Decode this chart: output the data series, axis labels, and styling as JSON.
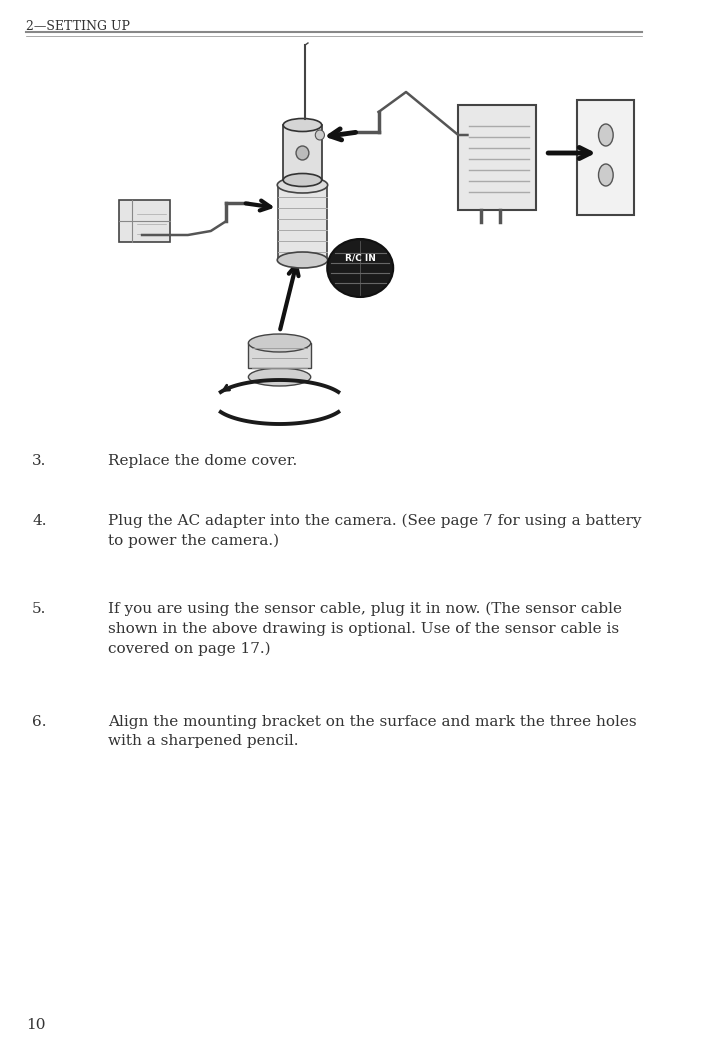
{
  "title": "2—Setting up",
  "page_number": "10",
  "background_color": "#ffffff",
  "text_color": "#333333",
  "header_line_color": "#888888",
  "items": [
    {
      "number": "3.",
      "text": "Replace the dome cover."
    },
    {
      "number": "4.",
      "text": "Plug the AC adapter into the camera. (See page 7 for using a battery\nto power the camera.)"
    },
    {
      "number": "5.",
      "text": "If you are using the sensor cable, plug it in now. (The sensor cable\nshown in the above drawing is optional. Use of the sensor cable is\ncovered on page 17.)"
    },
    {
      "number": "6.",
      "text": "Align the mounting bracket on the surface and mark the three holes\nwith a sharpened pencil."
    }
  ]
}
